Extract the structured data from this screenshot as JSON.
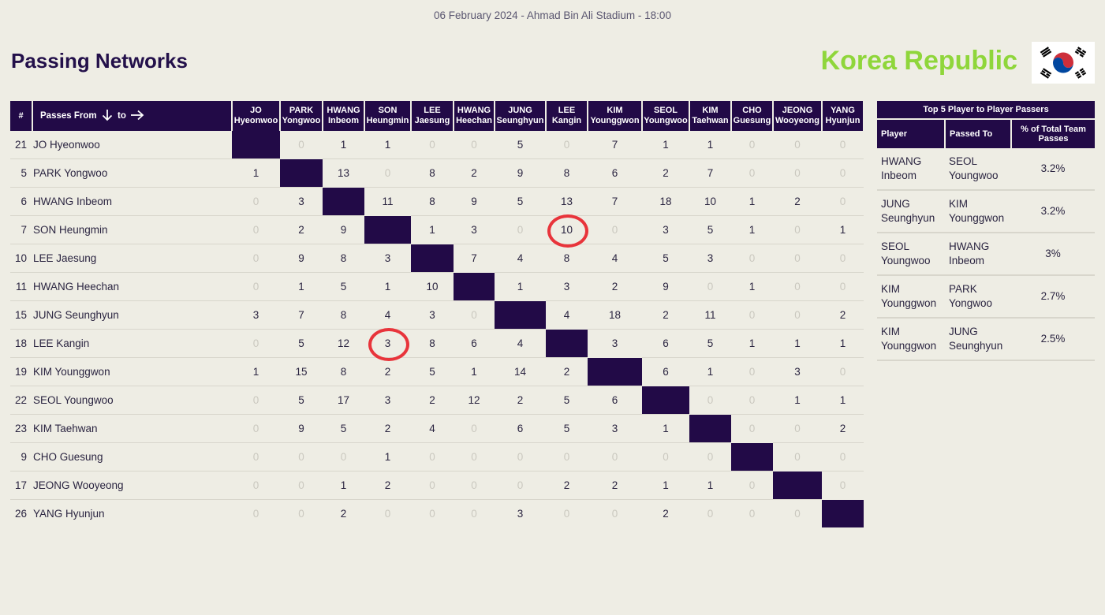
{
  "match_info": "06 February 2024 - Ahmad Bin Ali Stadium - 18:00",
  "page_title": "Passing Networks",
  "team": {
    "name": "Korea Republic"
  },
  "matrix": {
    "header_num": "#",
    "header_from": "Passes From",
    "header_to": "to",
    "columns": [
      {
        "last": "JO",
        "first": "Hyeonwoo"
      },
      {
        "last": "PARK",
        "first": "Yongwoo"
      },
      {
        "last": "HWANG",
        "first": "Inbeom"
      },
      {
        "last": "SON",
        "first": "Heungmin"
      },
      {
        "last": "LEE",
        "first": "Jaesung"
      },
      {
        "last": "HWANG",
        "first": "Heechan"
      },
      {
        "last": "JUNG",
        "first": "Seunghyun"
      },
      {
        "last": "LEE",
        "first": "Kangin"
      },
      {
        "last": "KIM",
        "first": "Younggwon"
      },
      {
        "last": "SEOL",
        "first": "Youngwoo"
      },
      {
        "last": "KIM",
        "first": "Taehwan"
      },
      {
        "last": "CHO",
        "first": "Guesung"
      },
      {
        "last": "JEONG",
        "first": "Wooyeong"
      },
      {
        "last": "YANG",
        "first": "Hyunjun"
      }
    ],
    "rows": [
      {
        "number": "21",
        "name": "JO Hyeonwoo",
        "values": [
          null,
          0,
          1,
          1,
          0,
          0,
          5,
          0,
          7,
          1,
          1,
          0,
          0,
          0
        ]
      },
      {
        "number": "5",
        "name": "PARK Yongwoo",
        "values": [
          1,
          null,
          13,
          0,
          8,
          2,
          9,
          8,
          6,
          2,
          7,
          0,
          0,
          0
        ]
      },
      {
        "number": "6",
        "name": "HWANG Inbeom",
        "values": [
          0,
          3,
          null,
          11,
          8,
          9,
          5,
          13,
          7,
          18,
          10,
          1,
          2,
          0
        ]
      },
      {
        "number": "7",
        "name": "SON Heungmin",
        "values": [
          0,
          2,
          9,
          null,
          1,
          3,
          0,
          10,
          0,
          3,
          5,
          1,
          0,
          1
        ]
      },
      {
        "number": "10",
        "name": "LEE Jaesung",
        "values": [
          0,
          9,
          8,
          3,
          null,
          7,
          4,
          8,
          4,
          5,
          3,
          0,
          0,
          0
        ]
      },
      {
        "number": "11",
        "name": "HWANG Heechan",
        "values": [
          0,
          1,
          5,
          1,
          10,
          null,
          1,
          3,
          2,
          9,
          0,
          1,
          0,
          0
        ]
      },
      {
        "number": "15",
        "name": "JUNG Seunghyun",
        "values": [
          3,
          7,
          8,
          4,
          3,
          0,
          null,
          4,
          18,
          2,
          11,
          0,
          0,
          2
        ]
      },
      {
        "number": "18",
        "name": "LEE Kangin",
        "values": [
          0,
          5,
          12,
          3,
          8,
          6,
          4,
          null,
          3,
          6,
          5,
          1,
          1,
          1
        ]
      },
      {
        "number": "19",
        "name": "KIM Younggwon",
        "values": [
          1,
          15,
          8,
          2,
          5,
          1,
          14,
          2,
          null,
          6,
          1,
          0,
          3,
          0
        ]
      },
      {
        "number": "22",
        "name": "SEOL Youngwoo",
        "values": [
          0,
          5,
          17,
          3,
          2,
          12,
          2,
          5,
          6,
          null,
          0,
          0,
          1,
          1
        ]
      },
      {
        "number": "23",
        "name": "KIM Taehwan",
        "values": [
          0,
          9,
          5,
          2,
          4,
          0,
          6,
          5,
          3,
          1,
          null,
          0,
          0,
          2
        ]
      },
      {
        "number": "9",
        "name": "CHO Guesung",
        "values": [
          0,
          0,
          0,
          1,
          0,
          0,
          0,
          0,
          0,
          0,
          0,
          null,
          0,
          0
        ]
      },
      {
        "number": "17",
        "name": "JEONG Wooyeong",
        "values": [
          0,
          0,
          1,
          2,
          0,
          0,
          0,
          2,
          2,
          1,
          1,
          0,
          null,
          0
        ]
      },
      {
        "number": "26",
        "name": "YANG Hyunjun",
        "values": [
          0,
          0,
          2,
          0,
          0,
          0,
          3,
          0,
          0,
          2,
          0,
          0,
          0,
          null
        ]
      }
    ],
    "highlights": [
      {
        "row": "SON Heungmin",
        "column": "LEE Kangin"
      },
      {
        "row": "LEE Kangin",
        "column": "SON Heungmin"
      }
    ]
  },
  "top5": {
    "title": "Top 5 Player to Player Passers",
    "headers": {
      "player": "Player",
      "passed_to": "Passed To",
      "pct": "% of Total Team Passes"
    },
    "rows": [
      {
        "player": "HWANG Inbeom",
        "passed_to": "SEOL Youngwoo",
        "pct": "3.2%"
      },
      {
        "player": "JUNG Seunghyun",
        "passed_to": "KIM Younggwon",
        "pct": "3.2%"
      },
      {
        "player": "SEOL Youngwoo",
        "passed_to": "HWANG Inbeom",
        "pct": "3%"
      },
      {
        "player": "KIM Younggwon",
        "passed_to": "PARK Yongwoo",
        "pct": "2.7%"
      },
      {
        "player": "KIM Younggwon",
        "passed_to": "JUNG Seunghyun",
        "pct": "2.5%"
      }
    ]
  },
  "colors": {
    "header_bg": "#220a47",
    "team_name": "#8fd63b",
    "highlight_ring": "#e8343b",
    "background": "#eeede4"
  },
  "icons": [
    "arrow-down-icon",
    "arrow-right-icon",
    "korea-flag-icon"
  ]
}
